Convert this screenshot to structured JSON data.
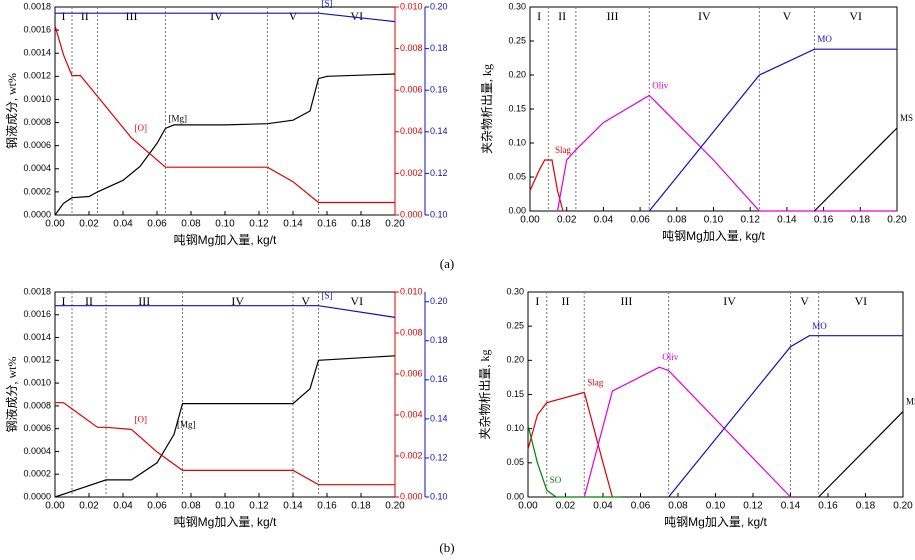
{
  "captions": [
    "(a)",
    "(b)"
  ],
  "chart_data": [
    {
      "type": "line",
      "ylabel": "钢液成分, wt%",
      "xlabel": "吨钢Mg加入量, kg/t",
      "xlim": [
        0,
        0.2
      ],
      "xticks": [
        {
          "value": 0,
          "label": "0.00"
        },
        {
          "value": 0.02,
          "label": "0.02"
        },
        {
          "value": 0.04,
          "label": "0.04"
        },
        {
          "value": 0.06,
          "label": "0.06"
        },
        {
          "value": 0.08,
          "label": "0.08"
        },
        {
          "value": 0.1,
          "label": "0.10"
        },
        {
          "value": 0.12,
          "label": "0.12"
        },
        {
          "value": 0.14,
          "label": "0.14"
        },
        {
          "value": 0.16,
          "label": "0.16"
        },
        {
          "value": 0.18,
          "label": "0.18"
        },
        {
          "value": 0.2,
          "label": "0.20"
        }
      ],
      "ylim": [
        0,
        0.0018
      ],
      "yticks": [
        {
          "value": 0,
          "label": "0.0000"
        },
        {
          "value": 0.0002,
          "label": "0.0002"
        },
        {
          "value": 0.0004,
          "label": "0.0004"
        },
        {
          "value": 0.0006,
          "label": "0.0006"
        },
        {
          "value": 0.0008,
          "label": "0.0008"
        },
        {
          "value": 0.001,
          "label": "0.0010"
        },
        {
          "value": 0.0012,
          "label": "0.0012"
        },
        {
          "value": 0.0014,
          "label": "0.0014"
        },
        {
          "value": 0.0016,
          "label": "0.0016"
        },
        {
          "value": 0.0018,
          "label": "0.0018"
        }
      ],
      "y2lim": [
        0,
        0.01
      ],
      "y2ticks": [
        {
          "value": 0,
          "label": "0.000"
        },
        {
          "value": 0.002,
          "label": "0.002"
        },
        {
          "value": 0.004,
          "label": "0.004"
        },
        {
          "value": 0.006,
          "label": "0.006"
        },
        {
          "value": 0.008,
          "label": "0.008"
        },
        {
          "value": 0.01,
          "label": "0.010"
        }
      ],
      "y2_color": "#e00000",
      "y3lim": [
        0.1,
        0.2
      ],
      "y3ticks": [
        {
          "value": 0.1,
          "label": "0.10"
        },
        {
          "value": 0.12,
          "label": "0.12"
        },
        {
          "value": 0.14,
          "label": "0.14"
        },
        {
          "value": 0.16,
          "label": "0.16"
        },
        {
          "value": 0.18,
          "label": "0.18"
        },
        {
          "value": 0.2,
          "label": "0.20"
        }
      ],
      "y3_color": "#1010c0",
      "regions": {
        "labels": [
          "I",
          "II",
          "III",
          "IV",
          "V",
          "VI"
        ],
        "boundaries": [
          0.01,
          0.025,
          0.065,
          0.125,
          0.155
        ]
      },
      "series": [
        {
          "name": "[Mg]",
          "color": "#000000",
          "axis": "y",
          "x": [
            0,
            0.005,
            0.01,
            0.02,
            0.025,
            0.04,
            0.05,
            0.06,
            0.065,
            0.07,
            0.1,
            0.125,
            0.14,
            0.15,
            0.155,
            0.16,
            0.2
          ],
          "values": [
            0,
            0.0001,
            0.00015,
            0.00016,
            0.0002,
            0.0003,
            0.00042,
            0.00062,
            0.00075,
            0.00078,
            0.00078,
            0.00079,
            0.00082,
            0.0009,
            0.00118,
            0.0012,
            0.00122
          ]
        },
        {
          "name": "[O]",
          "color": "#e00000",
          "axis": "y2",
          "x": [
            0,
            0.005,
            0.01,
            0.015,
            0.03,
            0.045,
            0.065,
            0.125,
            0.14,
            0.155,
            0.2
          ],
          "values": [
            0.0091,
            0.0077,
            0.0067,
            0.0067,
            0.0052,
            0.0037,
            0.0023,
            0.0023,
            0.0016,
            0.0006,
            0.0006
          ]
        },
        {
          "name": "[S]",
          "color": "#1010c0",
          "axis": "y3",
          "x": [
            0,
            0.155,
            0.2
          ],
          "values": [
            0.197,
            0.197,
            0.193
          ]
        }
      ]
    },
    {
      "type": "line",
      "ylabel": "夹杂物析出量, kg",
      "xlabel": "吨钢Mg加入量, kg/t",
      "xlim": [
        0,
        0.2
      ],
      "xticks": [
        {
          "value": 0,
          "label": "0.00"
        },
        {
          "value": 0.02,
          "label": "0.02"
        },
        {
          "value": 0.04,
          "label": "0.04"
        },
        {
          "value": 0.06,
          "label": "0.06"
        },
        {
          "value": 0.08,
          "label": "0.08"
        },
        {
          "value": 0.1,
          "label": "0.10"
        },
        {
          "value": 0.12,
          "label": "0.12"
        },
        {
          "value": 0.14,
          "label": "0.14"
        },
        {
          "value": 0.16,
          "label": "0.16"
        },
        {
          "value": 0.18,
          "label": "0.18"
        },
        {
          "value": 0.2,
          "label": "0.20"
        }
      ],
      "ylim": [
        0,
        0.3
      ],
      "yticks": [
        {
          "value": 0,
          "label": "0.00"
        },
        {
          "value": 0.05,
          "label": "0.05"
        },
        {
          "value": 0.1,
          "label": "0.10"
        },
        {
          "value": 0.15,
          "label": "0.15"
        },
        {
          "value": 0.2,
          "label": "0.20"
        },
        {
          "value": 0.25,
          "label": "0.25"
        },
        {
          "value": 0.3,
          "label": "0.30"
        }
      ],
      "regions": {
        "labels": [
          "I",
          "II",
          "III",
          "IV",
          "V",
          "VI"
        ],
        "boundaries": [
          0.01,
          0.025,
          0.065,
          0.125,
          0.155
        ]
      },
      "series": [
        {
          "name": "Slag",
          "color": "#e00000",
          "x": [
            0,
            0.005,
            0.008,
            0.012,
            0.015,
            0.018
          ],
          "values": [
            0.03,
            0.06,
            0.075,
            0.075,
            0.03,
            0
          ]
        },
        {
          "name": "Oliv",
          "color": "#e000e0",
          "x": [
            0.015,
            0.02,
            0.025,
            0.04,
            0.065,
            0.1,
            0.125,
            0.2
          ],
          "values": [
            0,
            0.075,
            0.09,
            0.13,
            0.17,
            0.075,
            0,
            0
          ]
        },
        {
          "name": "MO",
          "color": "#1010c0",
          "x": [
            0.065,
            0.125,
            0.155,
            0.2
          ],
          "values": [
            0,
            0.2,
            0.238,
            0.238
          ]
        },
        {
          "name": "MS",
          "color": "#000000",
          "x": [
            0.155,
            0.2
          ],
          "values": [
            0,
            0.122
          ]
        }
      ]
    },
    {
      "type": "line",
      "ylabel": "钢液成分, wt%",
      "xlabel": "吨钢Mg加入量, kg/t",
      "xlim": [
        0,
        0.2
      ],
      "xticks": [
        {
          "value": 0,
          "label": "0.00"
        },
        {
          "value": 0.02,
          "label": "0.02"
        },
        {
          "value": 0.04,
          "label": "0.04"
        },
        {
          "value": 0.06,
          "label": "0.06"
        },
        {
          "value": 0.08,
          "label": "0.08"
        },
        {
          "value": 0.1,
          "label": "0.10"
        },
        {
          "value": 0.12,
          "label": "0.12"
        },
        {
          "value": 0.14,
          "label": "0.14"
        },
        {
          "value": 0.16,
          "label": "0.16"
        },
        {
          "value": 0.18,
          "label": "0.18"
        },
        {
          "value": 0.2,
          "label": "0.20"
        }
      ],
      "ylim": [
        0,
        0.0018
      ],
      "yticks": [
        {
          "value": 0,
          "label": "0.0000"
        },
        {
          "value": 0.0002,
          "label": "0.0002"
        },
        {
          "value": 0.0004,
          "label": "0.0004"
        },
        {
          "value": 0.0006,
          "label": "0.0006"
        },
        {
          "value": 0.0008,
          "label": "0.0008"
        },
        {
          "value": 0.001,
          "label": "0.0010"
        },
        {
          "value": 0.0012,
          "label": "0.0012"
        },
        {
          "value": 0.0014,
          "label": "0.0014"
        },
        {
          "value": 0.0016,
          "label": "0.0016"
        },
        {
          "value": 0.0018,
          "label": "0.0018"
        }
      ],
      "y2lim": [
        0,
        0.01
      ],
      "y2ticks": [
        {
          "value": 0,
          "label": "0.000"
        },
        {
          "value": 0.002,
          "label": "0.002"
        },
        {
          "value": 0.004,
          "label": "0.004"
        },
        {
          "value": 0.006,
          "label": "0.006"
        },
        {
          "value": 0.008,
          "label": "0.008"
        },
        {
          "value": 0.01,
          "label": "0.010"
        }
      ],
      "y2_color": "#e00000",
      "y3lim": [
        0.1,
        0.205
      ],
      "y3ticks": [
        {
          "value": 0.1,
          "label": "0.10"
        },
        {
          "value": 0.12,
          "label": "0.12"
        },
        {
          "value": 0.14,
          "label": "0.14"
        },
        {
          "value": 0.16,
          "label": "0.16"
        },
        {
          "value": 0.18,
          "label": "0.18"
        },
        {
          "value": 0.2,
          "label": "0.20"
        }
      ],
      "y3_color": "#1010c0",
      "regions": {
        "labels": [
          "I",
          "II",
          "III",
          "IV",
          "V",
          "VI"
        ],
        "boundaries": [
          0.01,
          0.03,
          0.075,
          0.14,
          0.155
        ]
      },
      "series": [
        {
          "name": "[Mg]",
          "color": "#000000",
          "axis": "y",
          "x": [
            0,
            0.01,
            0.03,
            0.045,
            0.06,
            0.07,
            0.075,
            0.14,
            0.15,
            0.155,
            0.2
          ],
          "values": [
            0,
            5e-05,
            0.00015,
            0.00015,
            0.0003,
            0.00055,
            0.00082,
            0.00082,
            0.00095,
            0.0012,
            0.00124
          ]
        },
        {
          "name": "[O]",
          "color": "#e00000",
          "axis": "y2",
          "x": [
            0,
            0.005,
            0.01,
            0.025,
            0.03,
            0.045,
            0.06,
            0.075,
            0.14,
            0.155,
            0.2
          ],
          "values": [
            0.0046,
            0.0046,
            0.0043,
            0.0034,
            0.0034,
            0.0033,
            0.0022,
            0.0013,
            0.0013,
            0.0006,
            0.0006
          ]
        },
        {
          "name": "[S]",
          "color": "#1010c0",
          "axis": "y3",
          "x": [
            0,
            0.155,
            0.2
          ],
          "values": [
            0.198,
            0.198,
            0.192
          ]
        }
      ]
    },
    {
      "type": "line",
      "ylabel": "夹杂物析出量, kg",
      "xlabel": "吨钢Mg加入量, kg/t",
      "xlim": [
        0,
        0.2
      ],
      "xticks": [
        {
          "value": 0,
          "label": "0.00"
        },
        {
          "value": 0.02,
          "label": "0.02"
        },
        {
          "value": 0.04,
          "label": "0.04"
        },
        {
          "value": 0.06,
          "label": "0.06"
        },
        {
          "value": 0.08,
          "label": "0.08"
        },
        {
          "value": 0.1,
          "label": "0.10"
        },
        {
          "value": 0.12,
          "label": "0.12"
        },
        {
          "value": 0.14,
          "label": "0.14"
        },
        {
          "value": 0.16,
          "label": "0.16"
        },
        {
          "value": 0.18,
          "label": "0.18"
        },
        {
          "value": 0.2,
          "label": "0.20"
        }
      ],
      "ylim": [
        0,
        0.3
      ],
      "yticks": [
        {
          "value": 0,
          "label": "0.00"
        },
        {
          "value": 0.05,
          "label": "0.05"
        },
        {
          "value": 0.1,
          "label": "0.10"
        },
        {
          "value": 0.15,
          "label": "0.15"
        },
        {
          "value": 0.2,
          "label": "0.20"
        },
        {
          "value": 0.25,
          "label": "0.25"
        },
        {
          "value": 0.3,
          "label": "0.30"
        }
      ],
      "regions": {
        "labels": [
          "I",
          "II",
          "III",
          "IV",
          "V",
          "VI"
        ],
        "boundaries": [
          0.01,
          0.03,
          0.075,
          0.14,
          0.155
        ]
      },
      "series": [
        {
          "name": "Slag",
          "color": "#e00000",
          "x": [
            0,
            0.005,
            0.01,
            0.03,
            0.04,
            0.045
          ],
          "values": [
            0.07,
            0.12,
            0.138,
            0.153,
            0.05,
            0
          ]
        },
        {
          "name": "SO",
          "color": "#008000",
          "x": [
            0,
            0.005,
            0.01,
            0.015,
            0.05
          ],
          "values": [
            0.105,
            0.05,
            0.01,
            0,
            0
          ]
        },
        {
          "name": "Oliv",
          "color": "#e000e0",
          "x": [
            0.03,
            0.045,
            0.07,
            0.075,
            0.14
          ],
          "values": [
            0,
            0.155,
            0.19,
            0.185,
            0
          ]
        },
        {
          "name": "MO",
          "color": "#1010c0",
          "x": [
            0.075,
            0.14,
            0.15,
            0.2
          ],
          "values": [
            0,
            0.22,
            0.236,
            0.236
          ]
        },
        {
          "name": "MS",
          "color": "#000000",
          "x": [
            0.155,
            0.2
          ],
          "values": [
            0,
            0.125
          ]
        }
      ]
    }
  ]
}
